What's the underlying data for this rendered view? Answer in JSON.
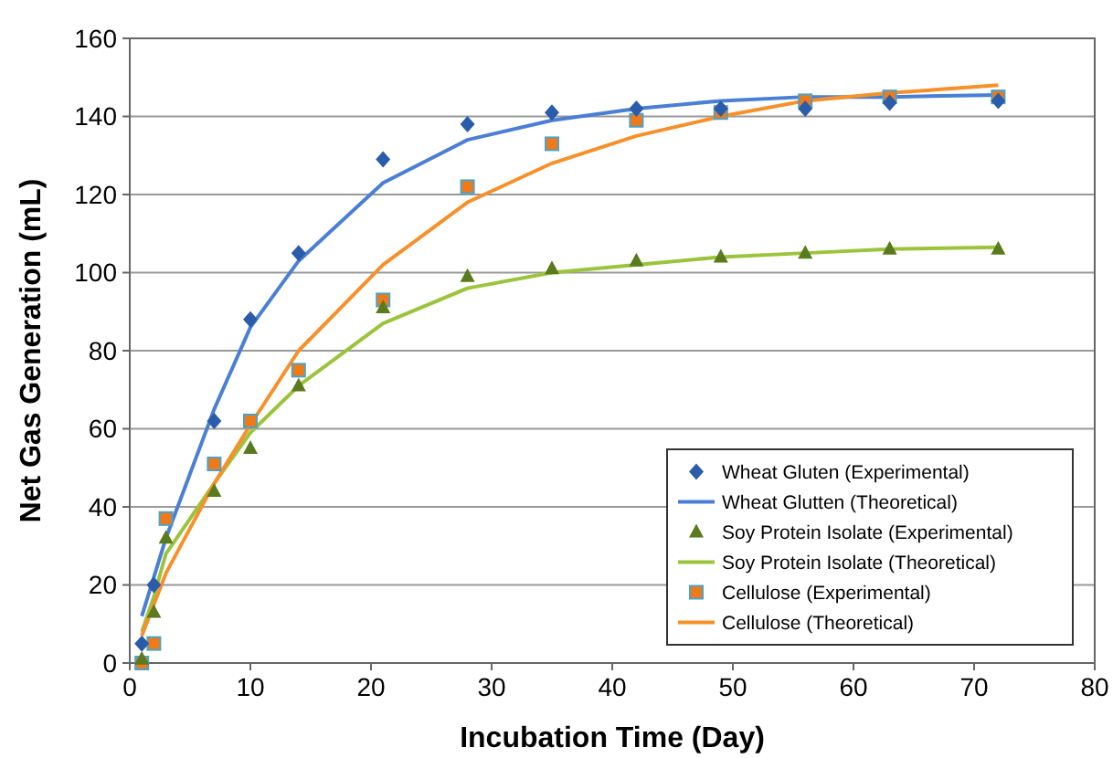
{
  "chart_data": {
    "type": "scatter",
    "xlabel": "Incubation Time (Day)",
    "ylabel": "Net Gas Generation (mL)",
    "x": [
      1,
      2,
      3,
      7,
      10,
      14,
      21,
      28,
      35,
      42,
      49,
      56,
      63,
      72
    ],
    "series": [
      {
        "name": "Wheat Gluten (Experimental)",
        "marker": "diamond",
        "color": "#2a5caa",
        "values": [
          5,
          20,
          null,
          62,
          88,
          105,
          129,
          138,
          141,
          142,
          142,
          142,
          143.5,
          144
        ]
      },
      {
        "name": "Wheat Glutten (Theoretical)",
        "type": "line",
        "marker": "none",
        "color": "#4a7fd4",
        "values": [
          12,
          22,
          32,
          65,
          86,
          103,
          123,
          134,
          139,
          142,
          144,
          145,
          145,
          145.5
        ]
      },
      {
        "name": "Soy Protein Isolate (Experimental)",
        "marker": "triangle",
        "color": "#5a7a1e",
        "values": [
          1,
          13,
          32,
          44,
          55,
          71,
          91,
          99,
          101,
          103,
          104,
          105,
          106,
          106
        ]
      },
      {
        "name": "Soy Protein Isolate (Theoretical)",
        "type": "line",
        "marker": "none",
        "color": "#9bc43c",
        "values": [
          8,
          17,
          28,
          46,
          59,
          71,
          87,
          96,
          100,
          102,
          104,
          105,
          106,
          106.5
        ]
      },
      {
        "name": "Cellulose (Experimental)",
        "marker": "square",
        "color": "#f07a1a",
        "values": [
          0,
          5,
          37,
          51,
          62,
          75,
          93,
          122,
          133,
          139,
          141,
          144,
          145,
          145
        ]
      },
      {
        "name": "Cellulose (Theoretical)",
        "type": "line",
        "marker": "none",
        "color": "#f7902a",
        "values": [
          7,
          15,
          23,
          46,
          61,
          80,
          102,
          118,
          128,
          135,
          140,
          144,
          146,
          148
        ]
      }
    ],
    "xlim": [
      0,
      80
    ],
    "xticks": [
      0,
      10,
      20,
      30,
      40,
      50,
      60,
      70,
      80
    ],
    "ylim": [
      0,
      160
    ],
    "yticks": [
      0,
      20,
      40,
      60,
      80,
      100,
      120,
      140,
      160
    ],
    "grid": "y",
    "legend": "bottom right"
  }
}
